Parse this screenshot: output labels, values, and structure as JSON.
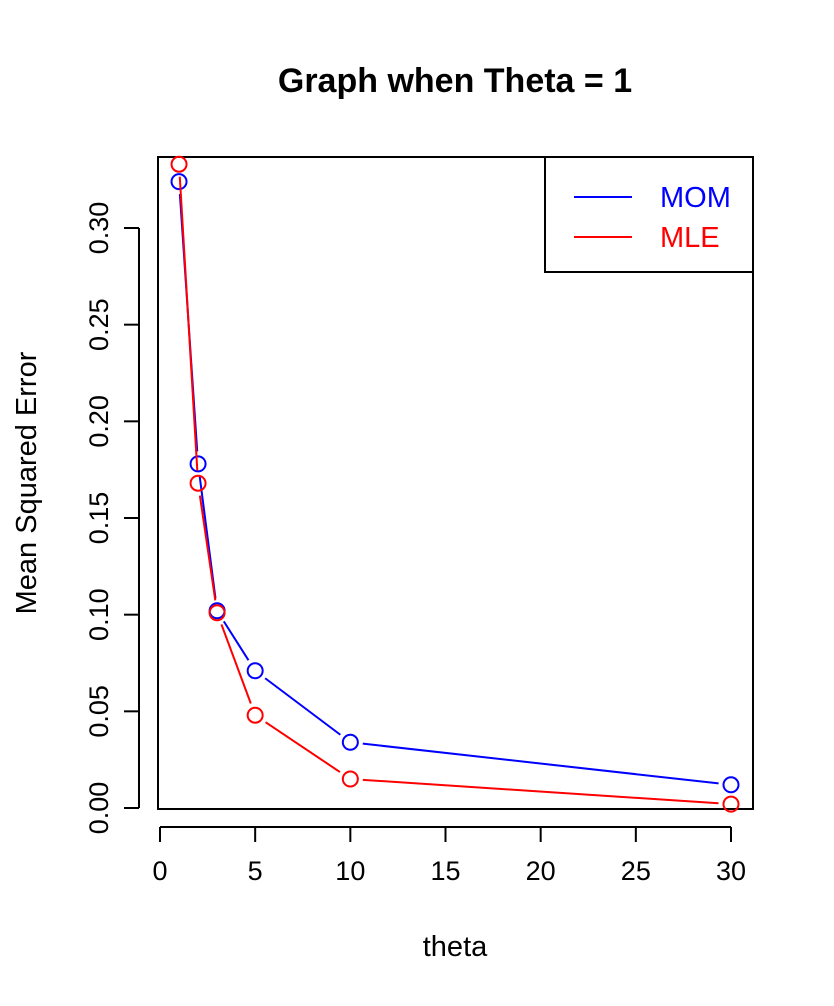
{
  "chart_data": {
    "type": "line",
    "title": "Graph when Theta = 1",
    "xlabel": "theta",
    "ylabel": "Mean Squared Error",
    "xlim": [
      0,
      30
    ],
    "ylim": [
      0,
      0.33
    ],
    "xticks": [
      "0",
      "5",
      "10",
      "15",
      "20",
      "25",
      "30"
    ],
    "yticks": [
      "0.00",
      "0.05",
      "0.10",
      "0.15",
      "0.20",
      "0.25",
      "0.30"
    ],
    "x": [
      1,
      2,
      3,
      5,
      10,
      30
    ],
    "series": [
      {
        "name": "MOM",
        "color": "#0000ff",
        "values": [
          0.324,
          0.178,
          0.102,
          0.071,
          0.034,
          0.012
        ]
      },
      {
        "name": "MLE",
        "color": "#ff0000",
        "values": [
          0.333,
          0.168,
          0.101,
          0.048,
          0.015,
          0.002
        ]
      }
    ],
    "legend_position": "top-right",
    "grid": false
  }
}
